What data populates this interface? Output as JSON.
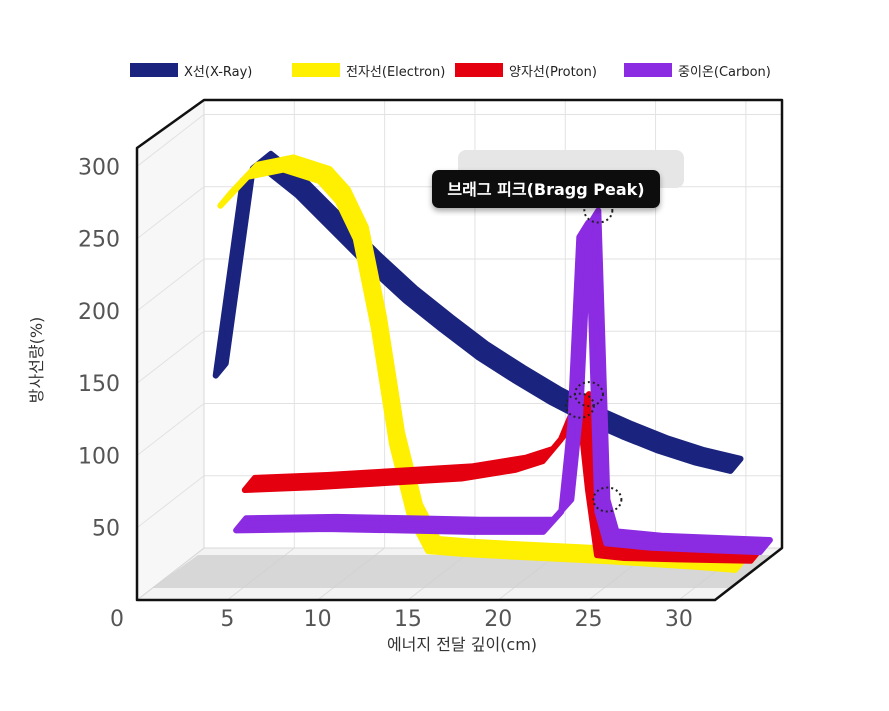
{
  "chart_data": {
    "type": "line",
    "title": "",
    "xlabel": "에너지 전달 깊이(cm)",
    "ylabel": "방사선량(%)",
    "x_ticks": [
      "0",
      "5",
      "10",
      "15",
      "20",
      "25",
      "30"
    ],
    "y_ticks": [
      "50",
      "100",
      "150",
      "200",
      "250",
      "300"
    ],
    "xlim": [
      0,
      32
    ],
    "ylim": [
      0,
      300
    ],
    "grid": true,
    "legend_position": "top",
    "annotation": "브래그 피크(Bragg Peak)",
    "series": [
      {
        "name": "X선(X-Ray)",
        "color": "#1a237e",
        "points": [
          [
            3.5,
            150
          ],
          [
            5,
            285
          ],
          [
            6,
            295
          ],
          [
            8,
            275
          ],
          [
            10,
            250
          ],
          [
            12,
            225
          ],
          [
            14,
            202
          ],
          [
            16,
            182
          ],
          [
            18,
            163
          ],
          [
            20,
            147
          ],
          [
            22,
            132
          ],
          [
            24,
            119
          ],
          [
            26,
            108
          ],
          [
            28,
            98
          ],
          [
            30,
            90
          ],
          [
            32,
            84
          ]
        ]
      },
      {
        "name": "전자선(Electron)",
        "color": "#ffef00",
        "points": [
          [
            3.5,
            265
          ],
          [
            5,
            285
          ],
          [
            7,
            290
          ],
          [
            9,
            282
          ],
          [
            10,
            268
          ],
          [
            11,
            242
          ],
          [
            12,
            180
          ],
          [
            13,
            100
          ],
          [
            14,
            50
          ],
          [
            15,
            26
          ],
          [
            17,
            24
          ],
          [
            20,
            22
          ],
          [
            25,
            19
          ],
          [
            30,
            15
          ],
          [
            32,
            13
          ]
        ]
      },
      {
        "name": "양자선(Proton)",
        "color": "#e50010",
        "points": [
          [
            4,
            60
          ],
          [
            8,
            62
          ],
          [
            12,
            65
          ],
          [
            16,
            68
          ],
          [
            19,
            74
          ],
          [
            20.5,
            80
          ],
          [
            21.5,
            95
          ],
          [
            22,
            110
          ],
          [
            22.5,
            118
          ],
          [
            23,
            60
          ],
          [
            23.5,
            15
          ],
          [
            25,
            13
          ],
          [
            28,
            12
          ],
          [
            32,
            11
          ]
        ]
      },
      {
        "name": "중이온(Carbon)",
        "color": "#8b2be2",
        "points": [
          [
            3,
            27
          ],
          [
            8,
            28
          ],
          [
            12,
            27
          ],
          [
            16,
            26
          ],
          [
            20,
            26
          ],
          [
            21,
            40
          ],
          [
            21.5,
            100
          ],
          [
            22,
            230
          ],
          [
            22.5,
            240
          ],
          [
            23,
            40
          ],
          [
            23.5,
            18
          ],
          [
            26,
            15
          ],
          [
            30,
            13
          ],
          [
            32,
            12
          ]
        ]
      }
    ]
  }
}
